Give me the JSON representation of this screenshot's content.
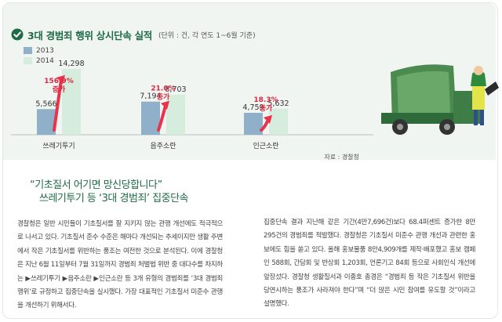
{
  "header": {
    "title": "3대 경범죄 행위 상시단속 실적",
    "note": "(단위 : 건, 각 연도 1~6월 기준)"
  },
  "chart_data": {
    "type": "bar",
    "categories": [
      "쓰레기투기",
      "음주소란",
      "인근소란"
    ],
    "series": [
      {
        "name": "2013",
        "values": [
          5566,
          7194,
          4759
        ]
      },
      {
        "name": "2014",
        "values": [
          14298,
          8703,
          5632
        ]
      }
    ],
    "value_labels": {
      "2013": [
        "5,566",
        "7,194",
        "4,759"
      ],
      "2014": [
        "14,298",
        "8,703",
        "5,632"
      ]
    },
    "growth_labels": [
      {
        "pct": "156.9%",
        "word": "증가"
      },
      {
        "pct": "21.0%",
        "word": "증가"
      },
      {
        "pct": "18.3%",
        "word": "증가"
      }
    ],
    "ylim": [
      0,
      17000
    ],
    "grid": false,
    "legend_position": "top-left"
  },
  "colors": {
    "bar_2013": "#8fb0c8",
    "bar_2014": "#d6ecdc",
    "arrow": "#e8334a",
    "growth_text": "#d92b41",
    "title": "#1f6b47",
    "panel_bg": "#f1f5f2"
  },
  "icons": {
    "check": "check-icon",
    "truck": "garbage-truck-illustration"
  },
  "source": "자료 : 경찰청",
  "article": {
    "headline_line1": "“기초질서 어기면 망신당합니다”",
    "headline_line2": "쓰레기투기 등 ‘3대 경범죄’ 집중단속",
    "paragraph_left": "경찰청은 일반 시민들이 기초질서를 잘 지키지 않는 관행 개선에도 적극적으로 나서고 있다. 기초질서 준수 수준은 해마다 개선되는 추세이지만 생활 주변에서 작은 기초질서를 위반하는 풍조는 여전한 것으로 분석된다. 이에 경찰청은 지난 6월 11일부터 7월 31일까지 경범죄 처벌법 위반 중 대다수를 차지하는 ▶쓰레기투기 ▶음주소란 ▶인근소란 등 3개 유형의 경범죄를 ‘3대 경범죄 행위’로 규정하고 집중단속을 실시했다. 가장 대표적인 기초질서 미준수 관행을 개선하기 위해서다.",
    "paragraph_right": "집중단속 결과 지난해 같은 기간(4만7,696건)보다 68.4퍼센트 증가한 8만295건의 경범죄를 적발했다. 경찰청은 기초질서 미준수 관행 개선과 관련한 홍보에도 힘을 쏟고 있다. 올해 홍보물품 8만4,909개를 제작·배포했고 홍보 캠페인 588회, 간담회 및 반상회 1,203회, 언론기고 84회 등으로 사회인식 개선에 앞장섰다. 경찰청 생활질서과 이종호 총경은 “경범죄 등 작은 기초질서 위반을 당연시하는 풍조가 사라져야 한다”며 “더 많은 시민 참여를 유도할 것”이라고 설명했다."
  }
}
